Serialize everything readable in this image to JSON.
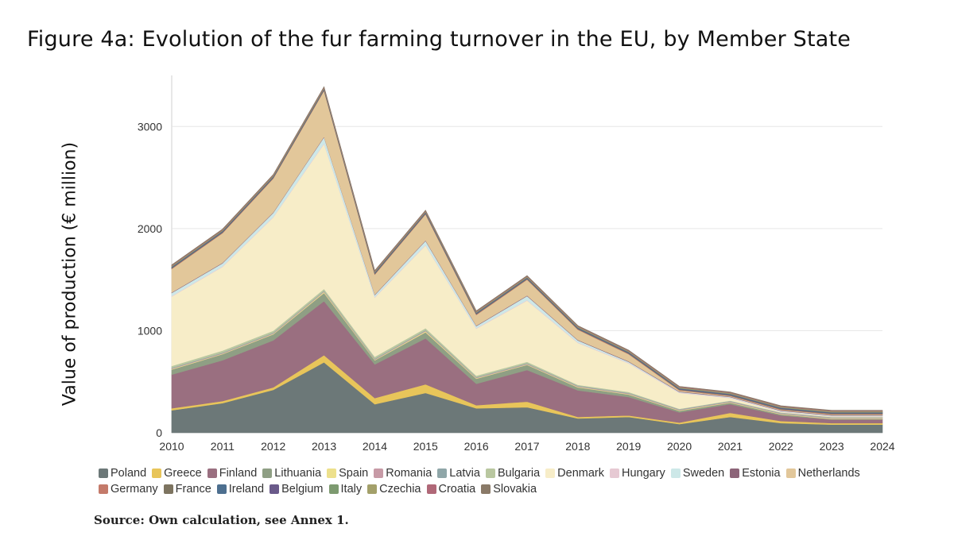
{
  "title": "Figure 4a: Evolution of the fur farming turnover in the EU, by Member State",
  "source": "Source: Own calculation, see Annex 1.",
  "chart_data": {
    "type": "area",
    "stacked": true,
    "ylabel": "Value of production (€ million)",
    "xlabel": "",
    "ylim": [
      0,
      3500
    ],
    "yticks": [
      0,
      1000,
      2000,
      3000
    ],
    "grid": true,
    "legend_position": "bottom",
    "x": [
      2010,
      2011,
      2012,
      2013,
      2014,
      2015,
      2016,
      2017,
      2018,
      2019,
      2020,
      2021,
      2022,
      2023,
      2024
    ],
    "series": [
      {
        "name": "Poland",
        "color": "#6c7878",
        "values": [
          220,
          290,
          420,
          690,
          280,
          390,
          240,
          250,
          140,
          155,
          85,
          155,
          95,
          80,
          80
        ]
      },
      {
        "name": "Greece",
        "color": "#e8c55a",
        "values": [
          20,
          20,
          25,
          70,
          60,
          85,
          30,
          55,
          15,
          15,
          15,
          40,
          20,
          15,
          15
        ]
      },
      {
        "name": "Finland",
        "color": "#9a6f80",
        "values": [
          330,
          400,
          460,
          530,
          330,
          450,
          210,
          310,
          260,
          180,
          100,
          85,
          55,
          35,
          35
        ]
      },
      {
        "name": "Lithuania",
        "color": "#8f9f84",
        "values": [
          50,
          60,
          60,
          80,
          40,
          60,
          50,
          50,
          30,
          25,
          15,
          15,
          10,
          5,
          5
        ]
      },
      {
        "name": "Spain",
        "color": "#ede08c",
        "values": [
          5,
          5,
          5,
          10,
          5,
          10,
          5,
          5,
          5,
          5,
          5,
          5,
          5,
          5,
          5
        ]
      },
      {
        "name": "Romania",
        "color": "#c79aa6",
        "values": [
          5,
          5,
          5,
          5,
          5,
          5,
          5,
          5,
          5,
          5,
          5,
          5,
          5,
          5,
          5
        ]
      },
      {
        "name": "Latvia",
        "color": "#8fa6a8",
        "values": [
          5,
          5,
          5,
          5,
          5,
          5,
          5,
          5,
          5,
          5,
          5,
          5,
          5,
          5,
          5
        ]
      },
      {
        "name": "Bulgaria",
        "color": "#b9c7a0",
        "values": [
          20,
          20,
          20,
          20,
          20,
          20,
          15,
          15,
          10,
          10,
          5,
          5,
          5,
          5,
          5
        ]
      },
      {
        "name": "Denmark",
        "color": "#f7edc8",
        "values": [
          680,
          820,
          1110,
          1420,
          580,
          810,
          460,
          600,
          410,
          280,
          155,
          25,
          5,
          5,
          5
        ]
      },
      {
        "name": "Hungary",
        "color": "#e6c9d3",
        "values": [
          5,
          5,
          5,
          5,
          5,
          5,
          5,
          5,
          5,
          5,
          5,
          5,
          5,
          5,
          5
        ]
      },
      {
        "name": "Sweden",
        "color": "#cde8e8",
        "values": [
          30,
          30,
          40,
          60,
          20,
          40,
          20,
          40,
          20,
          10,
          5,
          5,
          5,
          5,
          5
        ]
      },
      {
        "name": "Estonia",
        "color": "#8c6478",
        "values": [
          5,
          5,
          5,
          5,
          5,
          5,
          5,
          5,
          5,
          5,
          5,
          5,
          5,
          5,
          5
        ]
      },
      {
        "name": "Netherlands",
        "color": "#e2c79a",
        "values": [
          230,
          290,
          330,
          450,
          195,
          255,
          105,
          155,
          100,
          70,
          10,
          5,
          5,
          5,
          5
        ]
      },
      {
        "name": "Germany",
        "color": "#c47a6a",
        "values": [
          5,
          5,
          5,
          5,
          5,
          5,
          5,
          5,
          5,
          5,
          5,
          5,
          5,
          5,
          5
        ]
      },
      {
        "name": "France",
        "color": "#7d7460",
        "values": [
          5,
          5,
          5,
          5,
          5,
          5,
          5,
          5,
          5,
          5,
          5,
          5,
          5,
          5,
          5
        ]
      },
      {
        "name": "Ireland",
        "color": "#4d6f8f",
        "values": [
          5,
          5,
          5,
          5,
          5,
          5,
          5,
          5,
          5,
          5,
          5,
          5,
          5,
          5,
          5
        ]
      },
      {
        "name": "Belgium",
        "color": "#6a5a8a",
        "values": [
          5,
          5,
          5,
          5,
          5,
          5,
          5,
          5,
          5,
          5,
          5,
          5,
          5,
          5,
          5
        ]
      },
      {
        "name": "Italy",
        "color": "#7d9a70",
        "values": [
          5,
          5,
          5,
          5,
          5,
          5,
          5,
          5,
          5,
          5,
          5,
          5,
          5,
          5,
          5
        ]
      },
      {
        "name": "Czechia",
        "color": "#a3a06a",
        "values": [
          5,
          5,
          5,
          5,
          5,
          5,
          5,
          5,
          5,
          5,
          5,
          5,
          5,
          5,
          5
        ]
      },
      {
        "name": "Croatia",
        "color": "#b06878",
        "values": [
          5,
          5,
          5,
          5,
          5,
          5,
          5,
          5,
          5,
          5,
          5,
          5,
          5,
          5,
          5
        ]
      },
      {
        "name": "Slovakia",
        "color": "#8a7a68",
        "values": [
          5,
          5,
          5,
          5,
          5,
          5,
          5,
          5,
          5,
          5,
          5,
          5,
          5,
          5,
          5
        ]
      }
    ]
  }
}
